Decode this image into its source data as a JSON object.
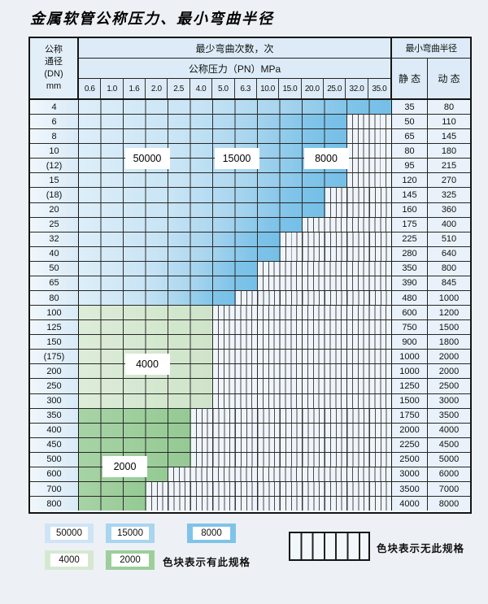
{
  "title": "金属软管公称压力、最小弯曲半径",
  "table": {
    "dn_header_lines": [
      "公称",
      "通径",
      "(DN)",
      "mm"
    ],
    "cycles_header": "最少弯曲次数，次",
    "pressure_header": "公称压力（PN）MPa",
    "radius_header": "最小弯曲半径",
    "static_header": "静 态",
    "dynamic_header": "动 态",
    "pressure_columns": [
      "0.6",
      "1.0",
      "1.6",
      "2.0",
      "2.5",
      "4.0",
      "5.0",
      "6.3",
      "10.0",
      "15.0",
      "20.0",
      "25.0",
      "32.0",
      "35.0"
    ],
    "rows": [
      {
        "dn": "4",
        "colored_cols": 14,
        "zone": "blue",
        "static": "35",
        "dynamic": "80"
      },
      {
        "dn": "6",
        "colored_cols": 12,
        "zone": "blue",
        "static": "50",
        "dynamic": "110"
      },
      {
        "dn": "8",
        "colored_cols": 12,
        "zone": "blue",
        "static": "65",
        "dynamic": "145"
      },
      {
        "dn": "10",
        "colored_cols": 12,
        "zone": "blue",
        "static": "80",
        "dynamic": "180"
      },
      {
        "dn": "(12)",
        "colored_cols": 12,
        "zone": "blue",
        "static": "95",
        "dynamic": "215"
      },
      {
        "dn": "15",
        "colored_cols": 12,
        "zone": "blue",
        "static": "120",
        "dynamic": "270"
      },
      {
        "dn": "(18)",
        "colored_cols": 11,
        "zone": "blue",
        "static": "145",
        "dynamic": "325"
      },
      {
        "dn": "20",
        "colored_cols": 11,
        "zone": "blue",
        "static": "160",
        "dynamic": "360"
      },
      {
        "dn": "25",
        "colored_cols": 10,
        "zone": "blue",
        "static": "175",
        "dynamic": "400"
      },
      {
        "dn": "32",
        "colored_cols": 9,
        "zone": "blue",
        "static": "225",
        "dynamic": "510"
      },
      {
        "dn": "40",
        "colored_cols": 9,
        "zone": "blue",
        "static": "280",
        "dynamic": "640"
      },
      {
        "dn": "50",
        "colored_cols": 8,
        "zone": "blue",
        "static": "350",
        "dynamic": "800"
      },
      {
        "dn": "65",
        "colored_cols": 8,
        "zone": "blue",
        "static": "390",
        "dynamic": "845"
      },
      {
        "dn": "80",
        "colored_cols": 7,
        "zone": "blue",
        "static": "480",
        "dynamic": "1000"
      },
      {
        "dn": "100",
        "colored_cols": 6,
        "zone": "green4000",
        "static": "600",
        "dynamic": "1200"
      },
      {
        "dn": "125",
        "colored_cols": 6,
        "zone": "green4000",
        "static": "750",
        "dynamic": "1500"
      },
      {
        "dn": "150",
        "colored_cols": 6,
        "zone": "green4000",
        "static": "900",
        "dynamic": "1800"
      },
      {
        "dn": "(175)",
        "colored_cols": 6,
        "zone": "green4000",
        "static": "1000",
        "dynamic": "2000"
      },
      {
        "dn": "200",
        "colored_cols": 6,
        "zone": "green4000",
        "static": "1000",
        "dynamic": "2000"
      },
      {
        "dn": "250",
        "colored_cols": 6,
        "zone": "green4000",
        "static": "1250",
        "dynamic": "2500"
      },
      {
        "dn": "300",
        "colored_cols": 6,
        "zone": "green4000",
        "static": "1500",
        "dynamic": "3000"
      },
      {
        "dn": "350",
        "colored_cols": 5,
        "zone": "green2000",
        "static": "1750",
        "dynamic": "3500"
      },
      {
        "dn": "400",
        "colored_cols": 5,
        "zone": "green2000",
        "static": "2000",
        "dynamic": "4000"
      },
      {
        "dn": "450",
        "colored_cols": 5,
        "zone": "green2000",
        "static": "2250",
        "dynamic": "4500"
      },
      {
        "dn": "500",
        "colored_cols": 5,
        "zone": "green2000",
        "static": "2500",
        "dynamic": "5000"
      },
      {
        "dn": "600",
        "colored_cols": 4,
        "zone": "green2000",
        "static": "3000",
        "dynamic": "6000"
      },
      {
        "dn": "700",
        "colored_cols": 3,
        "zone": "green2000",
        "static": "3500",
        "dynamic": "7000"
      },
      {
        "dn": "800",
        "colored_cols": 3,
        "zone": "green2000",
        "static": "4000",
        "dynamic": "8000"
      }
    ],
    "overlay_labels": [
      {
        "text": "50000",
        "col": 2,
        "span": 2,
        "row": 3
      },
      {
        "text": "15000",
        "col": 6,
        "span": 2,
        "row": 3
      },
      {
        "text": "8000",
        "col": 10,
        "span": 2,
        "row": 3
      },
      {
        "text": "4000",
        "col": 2,
        "span": 2,
        "row": 17
      },
      {
        "text": "2000",
        "col": 1,
        "span": 2,
        "row": 24
      }
    ]
  },
  "legend": {
    "swatches": [
      {
        "label": "50000",
        "color": "#cfe4f6"
      },
      {
        "label": "15000",
        "color": "#a9d5ee"
      },
      {
        "label": "8000",
        "color": "#7fc3e9"
      },
      {
        "label": "4000",
        "color": "#d6e8d2"
      },
      {
        "label": "2000",
        "color": "#9dce9c"
      }
    ],
    "has_spec_text": "色块表示有此规格",
    "no_spec_text": "色块表示无此规格"
  }
}
